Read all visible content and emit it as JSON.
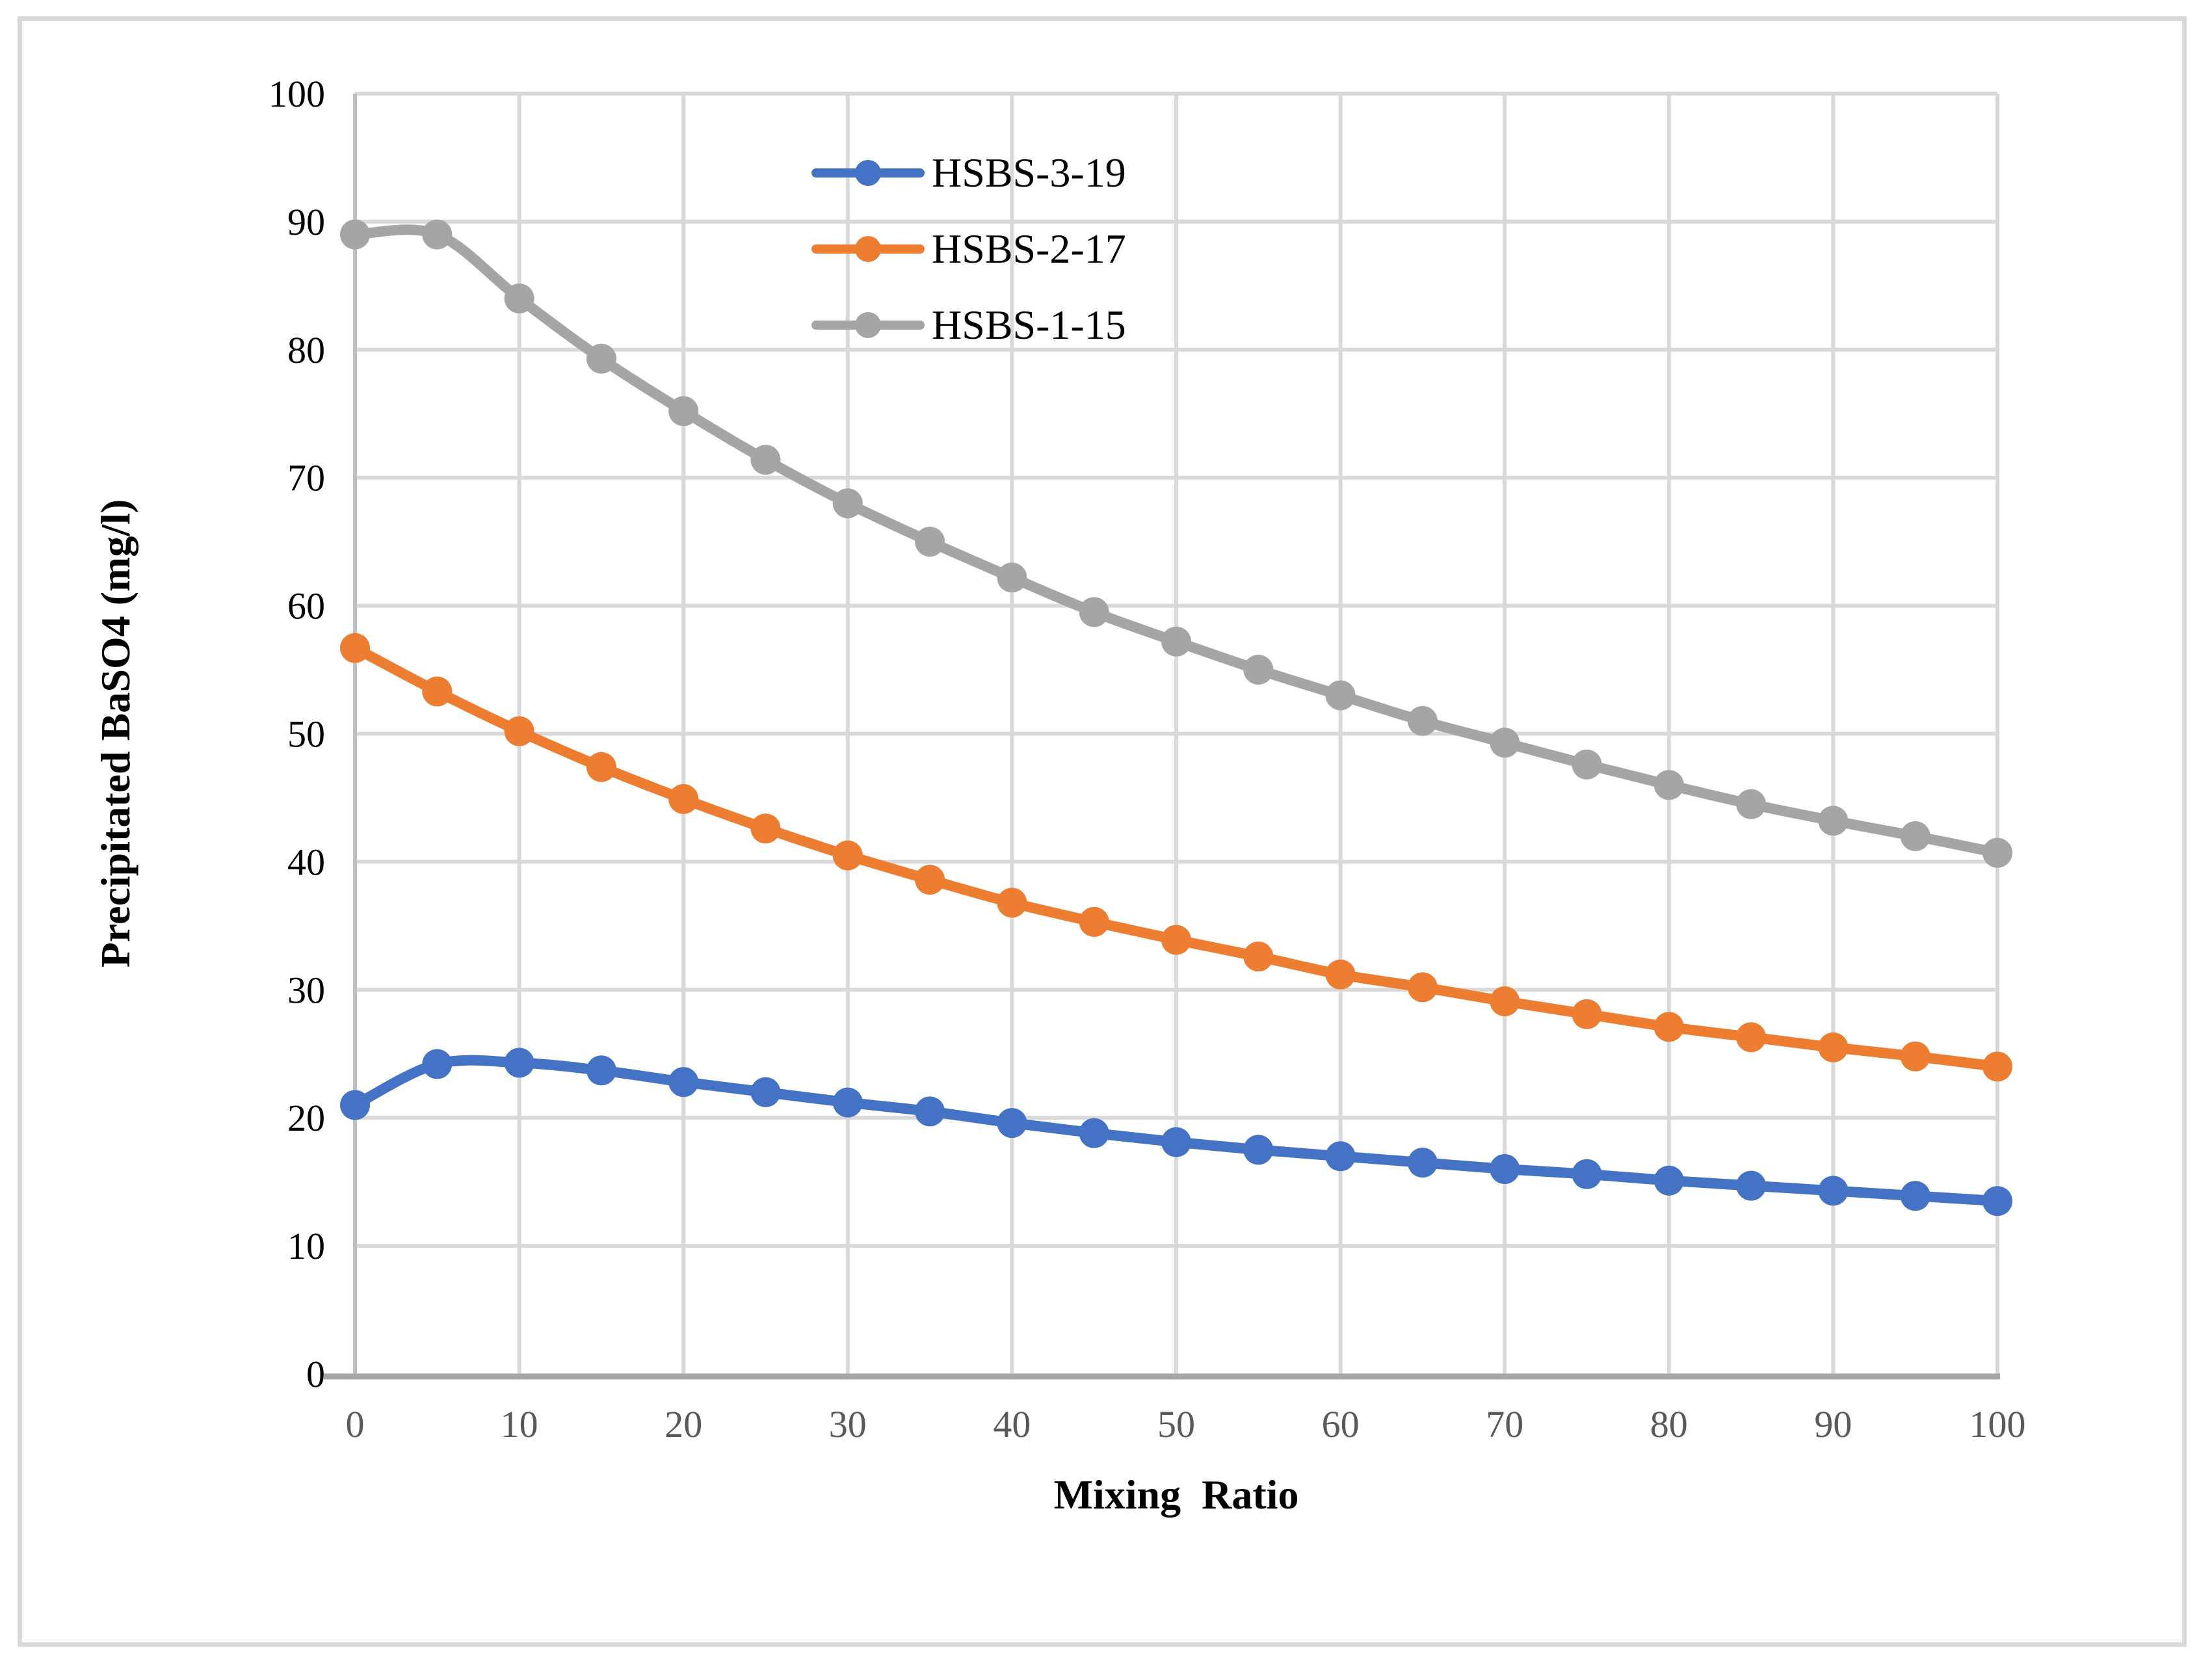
{
  "figure": {
    "background_color": "#FFFFFF",
    "border_color": "#D9D9D9"
  },
  "styles": {
    "grid_color": "#D9D9D9",
    "y_axis_line_color": "#BFBFBF",
    "x_axis_line_color": "#A6A6A6",
    "x_tick_label_color": "#595959",
    "y_tick_label_color": "#000000"
  },
  "chart_data": {
    "type": "line",
    "xlabel": "Mixing  Ratio",
    "ylabel": "Precipitated BaSO4 (mg/l)",
    "xlim": [
      0,
      100
    ],
    "ylim": [
      0,
      100
    ],
    "x_ticks": [
      0,
      10,
      20,
      30,
      40,
      50,
      60,
      70,
      80,
      90,
      100
    ],
    "y_ticks": [
      0,
      10,
      20,
      30,
      40,
      50,
      60,
      70,
      80,
      90,
      100
    ],
    "grid": true,
    "legend_position": "inside-top-center",
    "x": [
      0,
      5,
      10,
      15,
      20,
      25,
      30,
      35,
      40,
      45,
      50,
      55,
      60,
      65,
      70,
      75,
      80,
      85,
      90,
      95,
      100
    ],
    "series": [
      {
        "name": "HSBS-3-19",
        "color": "#4472C4",
        "values": [
          21.0,
          24.2,
          24.3,
          23.7,
          22.8,
          22.0,
          21.2,
          20.5,
          19.6,
          18.8,
          18.1,
          17.5,
          17.0,
          16.5,
          16.0,
          15.6,
          15.1,
          14.7,
          14.3,
          13.9,
          13.5
        ]
      },
      {
        "name": "HSBS-2-17",
        "color": "#ED7D31",
        "values": [
          56.7,
          53.3,
          50.2,
          47.4,
          44.9,
          42.6,
          40.5,
          38.6,
          36.8,
          35.3,
          33.9,
          32.6,
          31.2,
          30.2,
          29.1,
          28.1,
          27.1,
          26.3,
          25.5,
          24.8,
          24.0
        ]
      },
      {
        "name": "HSBS-1-15",
        "color": "#A5A5A5",
        "values": [
          89.0,
          89.0,
          84.0,
          79.3,
          75.2,
          71.4,
          68.0,
          65.0,
          62.2,
          59.5,
          57.2,
          55.0,
          53.0,
          51.0,
          49.3,
          47.6,
          46.0,
          44.5,
          43.2,
          42.0,
          40.7
        ]
      }
    ]
  }
}
